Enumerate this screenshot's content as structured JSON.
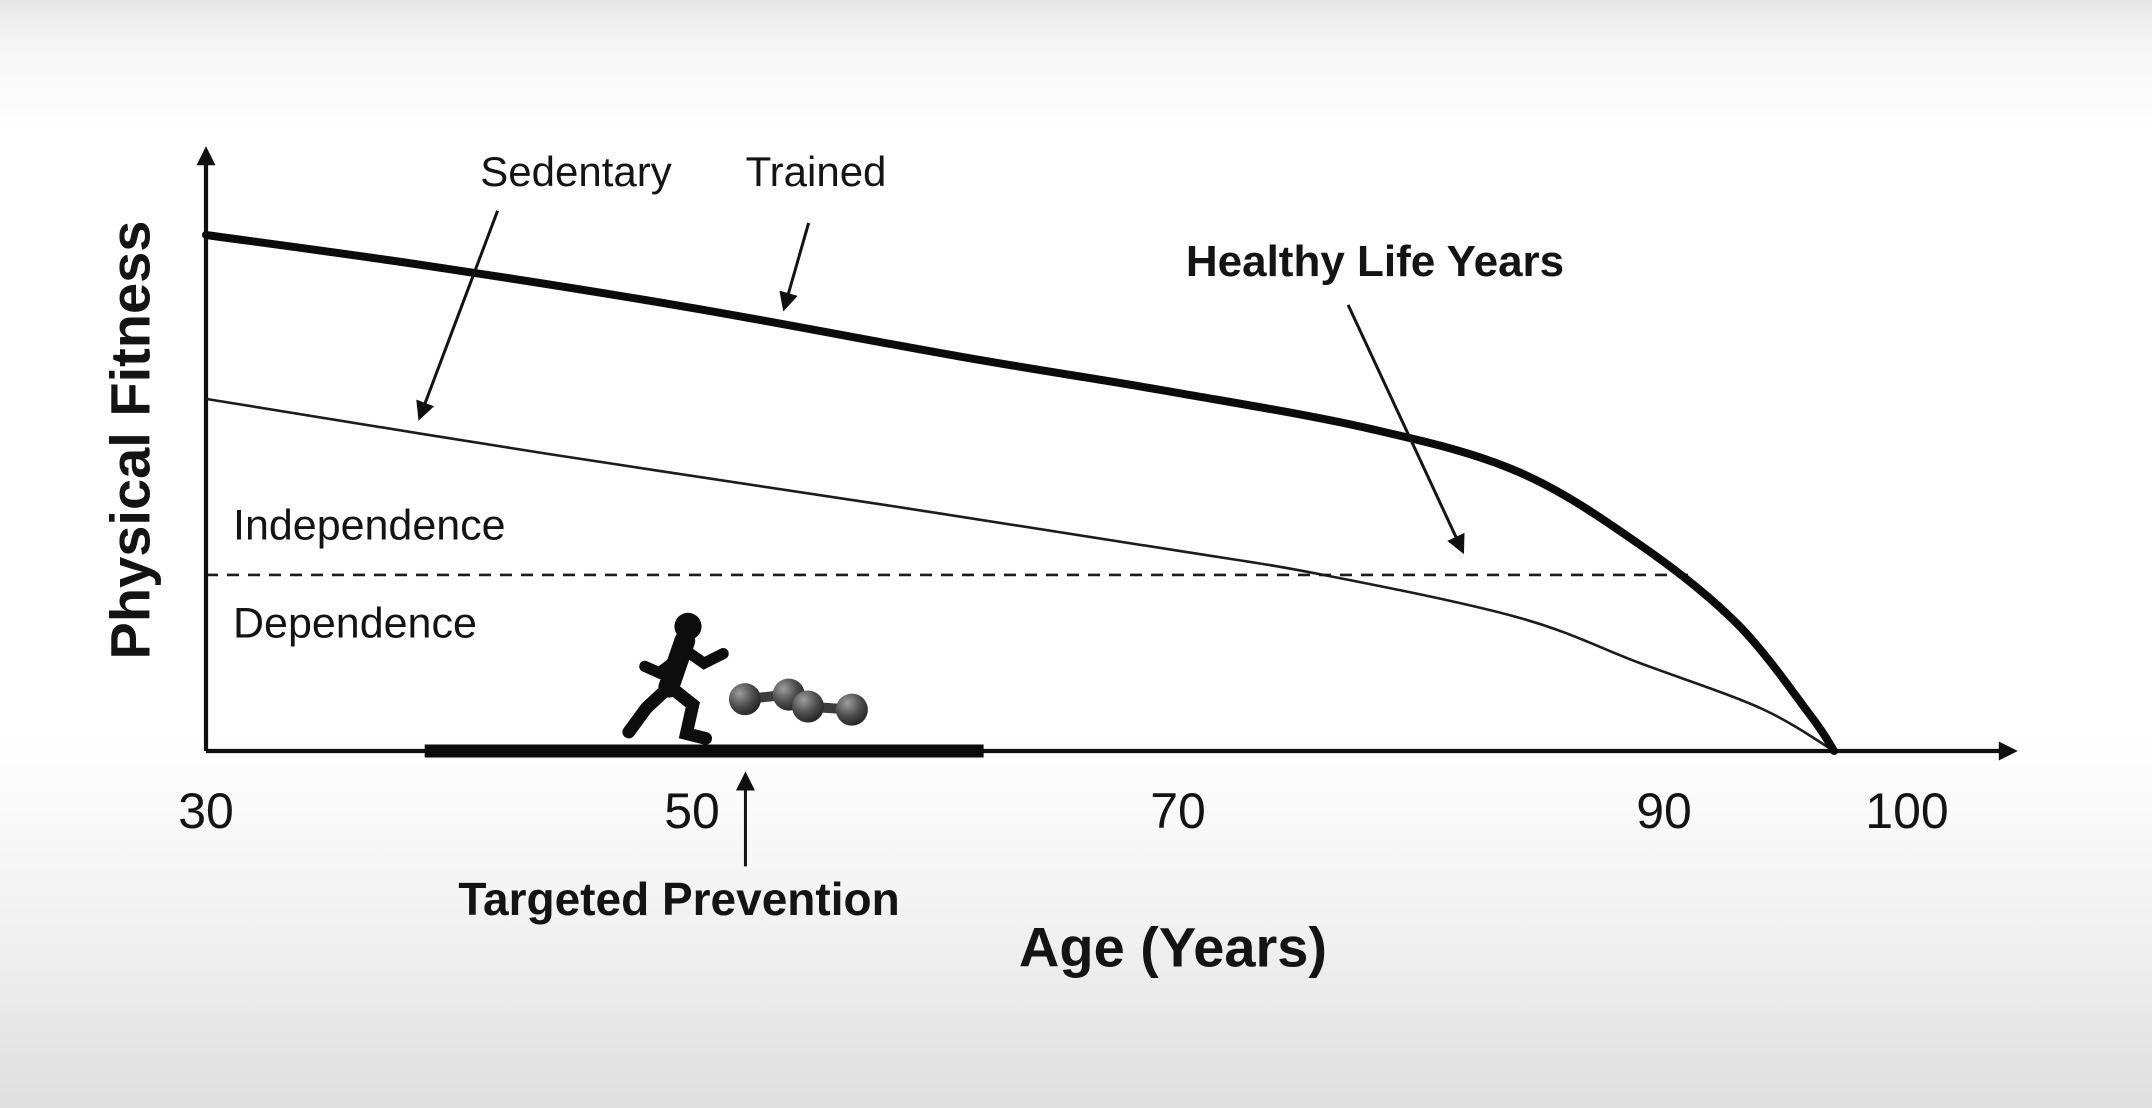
{
  "chart_data": {
    "type": "line",
    "title": "",
    "xlabel": "Age (Years)",
    "ylabel": "Physical Fitness",
    "xlim": [
      30,
      105
    ],
    "ylim": [
      0,
      100
    ],
    "x_ticks": [
      30,
      50,
      70,
      90,
      100
    ],
    "grid": false,
    "legend_position": "none",
    "series": [
      {
        "name": "Trained",
        "line_style": "thick-solid",
        "color": "#0b0b0b",
        "x": [
          30,
          39,
          50,
          61,
          70,
          78,
          84,
          89,
          93,
          96,
          97
        ],
        "y": [
          85,
          80,
          73,
          65,
          59,
          53,
          46,
          34,
          21,
          6,
          0
        ]
      },
      {
        "name": "Sedentary",
        "line_style": "thin-solid",
        "color": "#1c1c1c",
        "x": [
          30,
          44,
          58,
          70,
          76,
          84,
          89,
          94,
          97
        ],
        "y": [
          58,
          49,
          40.5,
          33,
          29,
          22,
          14.5,
          7,
          0
        ]
      }
    ],
    "threshold_line": {
      "style": "dashed",
      "fitness": 29,
      "x_start": 30,
      "x_end": 91,
      "label_above": "Independence",
      "label_below": "Dependence"
    },
    "targeted_prevention_bar": {
      "x_start": 39,
      "x_end": 62,
      "label": "Targeted Prevention"
    },
    "annotations": [
      {
        "name": "sedentary-arrow",
        "label": "Sedentary",
        "from": {
          "age": 42,
          "fitness": 89
        },
        "to": {
          "age": 38.8,
          "fitness": 55
        }
      },
      {
        "name": "trained-arrow",
        "label": "Trained",
        "from": {
          "age": 54.8,
          "fitness": 87
        },
        "to": {
          "age": 53.8,
          "fitness": 73
        }
      },
      {
        "name": "healthy-life-years-arrow",
        "label": "Healthy Life Years",
        "from": {
          "age": 77,
          "fitness": 73.5
        },
        "to": {
          "age": 81.7,
          "fitness": 33
        }
      },
      {
        "name": "targeted-prevention-arrow",
        "label": "Targeted Prevention",
        "from": {
          "age": 52.2,
          "fitness": -19
        },
        "to": {
          "age": 52.2,
          "fitness": -4
        }
      }
    ],
    "icons": [
      "runner-icon",
      "dumbbell-icon"
    ],
    "colors": {
      "ink": "#141414",
      "background_top": "#e7e7e7",
      "background_bottom": "#dfdfdf"
    }
  }
}
